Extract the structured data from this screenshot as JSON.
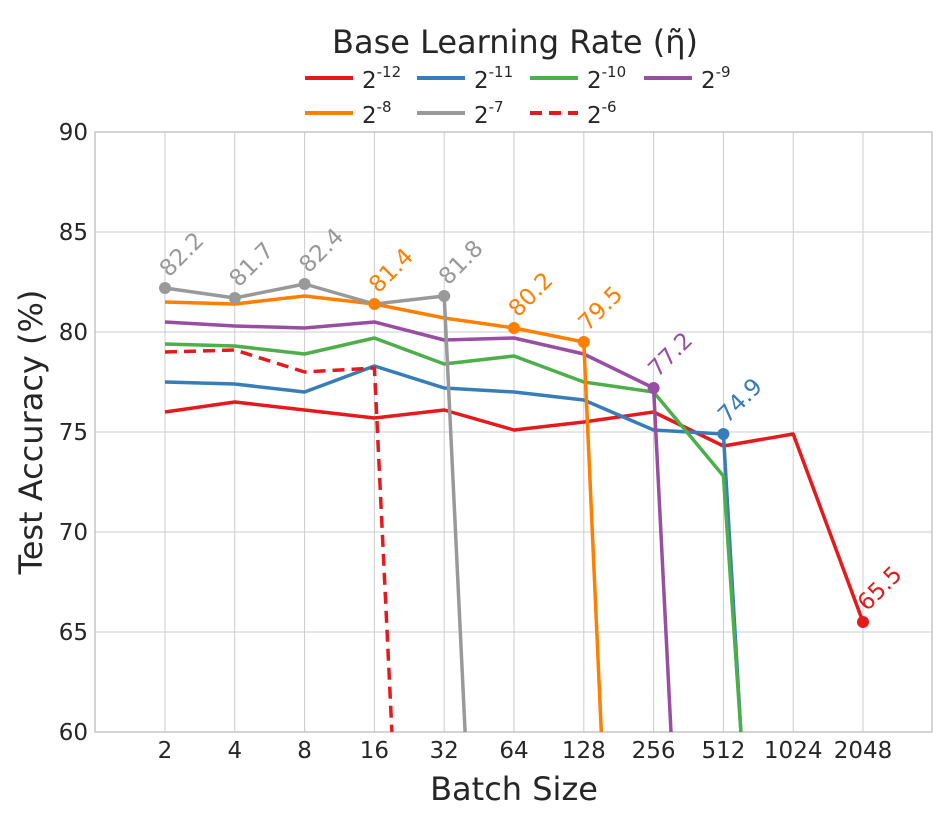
{
  "chart_data": {
    "type": "line",
    "legend_title": "Base Learning Rate (η̃)",
    "legend_placement": "top-center",
    "xlabel": "Batch Size",
    "ylabel": "Test Accuracy (%)",
    "categories": [
      "2",
      "4",
      "8",
      "16",
      "32",
      "64",
      "128",
      "256",
      "512",
      "1024",
      "2048"
    ],
    "yticks": [
      "60",
      "65",
      "70",
      "75",
      "80",
      "85",
      "90"
    ],
    "ylim": [
      60,
      90
    ],
    "grid": true,
    "series": [
      {
        "name_base": "2",
        "name_exp": "-12",
        "color": "#e41a1c",
        "dashed": false,
        "points": [
          [
            0,
            76.0
          ],
          [
            1,
            76.5
          ],
          [
            2,
            76.1
          ],
          [
            3,
            75.7
          ],
          [
            4,
            76.1
          ],
          [
            5,
            75.1
          ],
          [
            6,
            75.5
          ],
          [
            7,
            76.0
          ],
          [
            8,
            74.3
          ],
          [
            9,
            74.9
          ],
          [
            10,
            65.5
          ]
        ],
        "marker": {
          "index": 10,
          "value": 65.5,
          "label": "65.5"
        }
      },
      {
        "name_base": "2",
        "name_exp": "-11",
        "color": "#377eb8",
        "dashed": false,
        "points": [
          [
            0,
            77.5
          ],
          [
            1,
            77.4
          ],
          [
            2,
            77.0
          ],
          [
            3,
            78.3
          ],
          [
            4,
            77.2
          ],
          [
            5,
            77.0
          ],
          [
            6,
            76.6
          ],
          [
            7,
            75.1
          ],
          [
            8,
            74.9
          ],
          [
            8.25,
            60
          ]
        ],
        "marker": {
          "index": 8,
          "value": 74.9,
          "label": "74.9"
        }
      },
      {
        "name_base": "2",
        "name_exp": "-10",
        "color": "#4daf4a",
        "dashed": false,
        "points": [
          [
            0,
            79.4
          ],
          [
            1,
            79.3
          ],
          [
            2,
            78.9
          ],
          [
            3,
            79.7
          ],
          [
            4,
            78.4
          ],
          [
            5,
            78.8
          ],
          [
            6,
            77.5
          ],
          [
            7,
            77.0
          ],
          [
            8,
            72.8
          ],
          [
            8.25,
            60
          ]
        ],
        "marker": null
      },
      {
        "name_base": "2",
        "name_exp": "-9",
        "color": "#984ea3",
        "dashed": false,
        "points": [
          [
            0,
            80.5
          ],
          [
            1,
            80.3
          ],
          [
            2,
            80.2
          ],
          [
            3,
            80.5
          ],
          [
            4,
            79.6
          ],
          [
            5,
            79.7
          ],
          [
            6,
            78.9
          ],
          [
            7,
            77.2
          ],
          [
            7.25,
            60
          ]
        ],
        "marker": {
          "index": 7,
          "value": 77.2,
          "label": "77.2"
        }
      },
      {
        "name_base": "2",
        "name_exp": "-8",
        "color": "#ff7f00",
        "dashed": false,
        "points": [
          [
            0,
            81.5
          ],
          [
            1,
            81.4
          ],
          [
            2,
            81.8
          ],
          [
            3,
            81.4
          ],
          [
            4,
            80.7
          ],
          [
            5,
            80.2
          ],
          [
            6,
            79.5
          ],
          [
            6.25,
            60
          ]
        ],
        "marker": {
          "index": [
            3,
            5,
            6
          ],
          "value": [
            81.4,
            80.2,
            79.5
          ],
          "label": [
            "81.4",
            "80.2",
            "79.5"
          ]
        }
      },
      {
        "name_base": "2",
        "name_exp": "-7",
        "color": "#999999",
        "dashed": false,
        "points": [
          [
            0,
            82.2
          ],
          [
            1,
            81.7
          ],
          [
            2,
            82.4
          ],
          [
            3,
            81.4
          ],
          [
            4,
            81.8
          ],
          [
            4.3,
            60
          ]
        ],
        "marker": {
          "index": [
            0,
            1,
            2,
            4
          ],
          "value": [
            82.2,
            81.7,
            82.4,
            81.8
          ],
          "label": [
            "82.2",
            "81.7",
            "82.4",
            "81.8"
          ]
        }
      },
      {
        "name_base": "2",
        "name_exp": "-6",
        "color": "#e41a1c",
        "dashed": true,
        "points": [
          [
            0,
            79.0
          ],
          [
            1,
            79.1
          ],
          [
            2,
            78.0
          ],
          [
            3,
            78.2
          ],
          [
            3.25,
            60
          ]
        ],
        "marker": null
      }
    ]
  }
}
